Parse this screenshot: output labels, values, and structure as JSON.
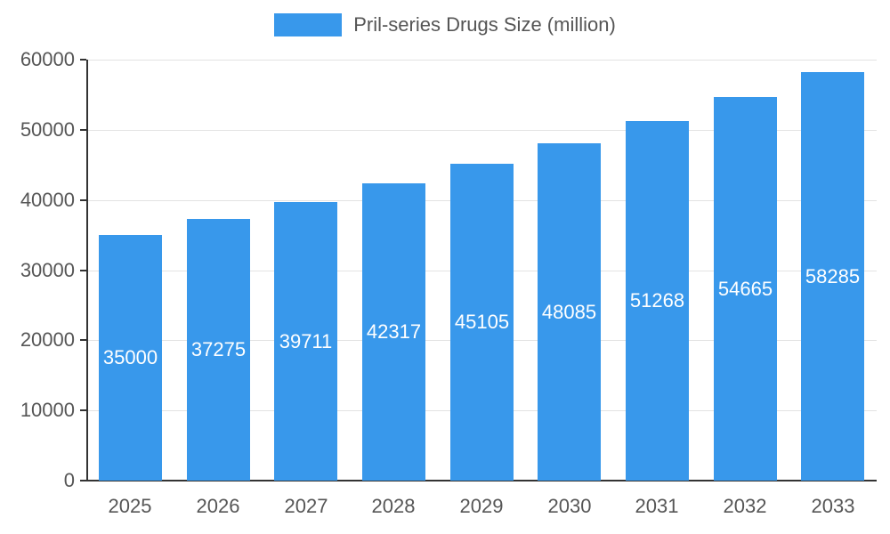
{
  "chart_data": {
    "type": "bar",
    "title": "Pril-series Drugs Size (million)",
    "categories": [
      "2025",
      "2026",
      "2027",
      "2028",
      "2029",
      "2030",
      "2031",
      "2032",
      "2033"
    ],
    "values": [
      35000,
      37275,
      39711,
      42317,
      45105,
      48085,
      51268,
      54665,
      58285
    ],
    "xlabel": "",
    "ylabel": "",
    "ylim": [
      0,
      60000
    ],
    "yticks": [
      0,
      10000,
      20000,
      30000,
      40000,
      50000,
      60000
    ],
    "grid": true,
    "legend_position": "top",
    "value_label_style": "inside-center-white",
    "bar_color": "#3898EB",
    "axis_text_color": "#565656",
    "gridline_color": "#E3E3E3",
    "axis_line_color": "#333333",
    "background_color": "#FFFFFF",
    "value_label_color": "#FFFFFF"
  }
}
